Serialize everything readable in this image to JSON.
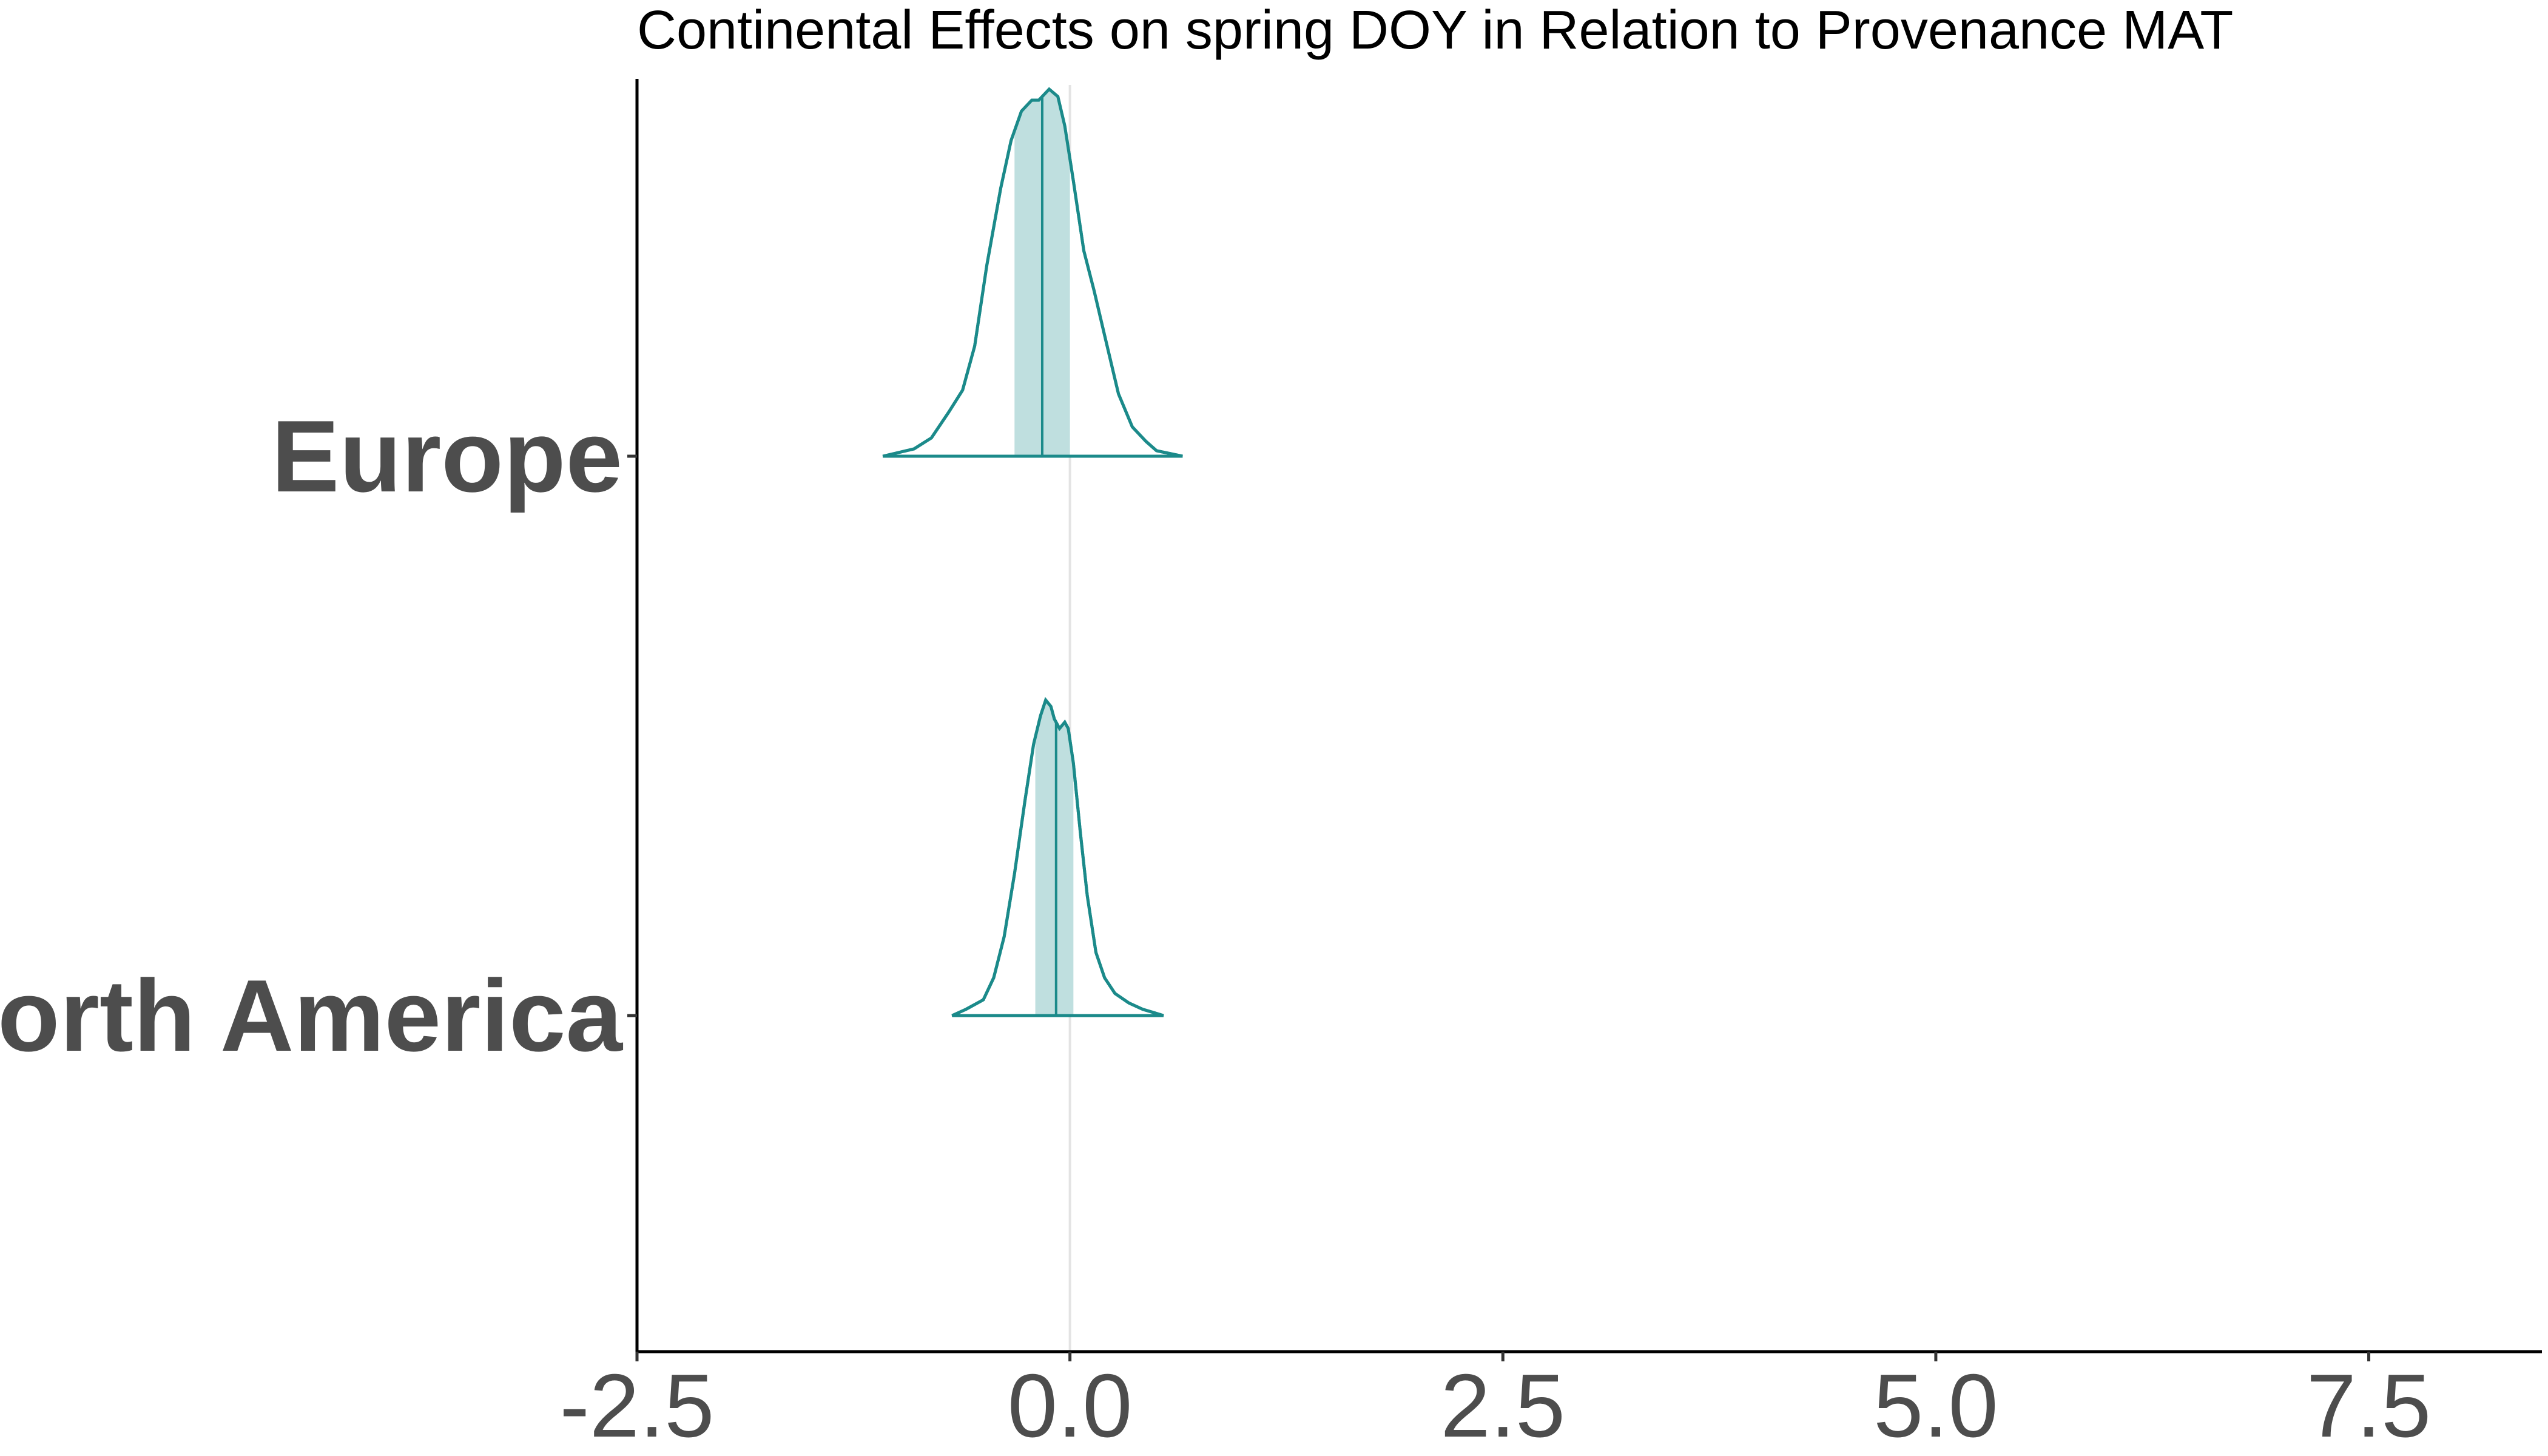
{
  "chart_data": {
    "type": "ridgeline",
    "title": "Continental Effects on spring DOY in Relation to Provenance MAT",
    "xlabel": "",
    "ylabel": "",
    "xlim": [
      -2.5,
      8.5
    ],
    "xticks": [
      -2.5,
      0.0,
      2.5,
      5.0,
      7.5
    ],
    "xtick_labels": [
      "-2.5",
      "0.0",
      "2.5",
      "5.0",
      "7.5"
    ],
    "reference_line_x": 0,
    "grid": false,
    "colors": {
      "line": "#1b8a8a",
      "band": "#a9d4d4",
      "reference": "#e3e3e3"
    },
    "series": [
      {
        "name": "Europe",
        "range": [
          -1.08,
          0.65
        ],
        "median": -0.16,
        "interval": [
          -0.32,
          0.0
        ],
        "density": [
          [
            -1.08,
            0.0
          ],
          [
            -0.9,
            0.02
          ],
          [
            -0.8,
            0.05
          ],
          [
            -0.7,
            0.12
          ],
          [
            -0.62,
            0.18
          ],
          [
            -0.55,
            0.3
          ],
          [
            -0.48,
            0.52
          ],
          [
            -0.4,
            0.73
          ],
          [
            -0.34,
            0.86
          ],
          [
            -0.28,
            0.94
          ],
          [
            -0.22,
            0.97
          ],
          [
            -0.18,
            0.97
          ],
          [
            -0.12,
            1.0
          ],
          [
            -0.07,
            0.98
          ],
          [
            -0.03,
            0.9
          ],
          [
            0.02,
            0.75
          ],
          [
            0.08,
            0.56
          ],
          [
            0.14,
            0.45
          ],
          [
            0.2,
            0.33
          ],
          [
            0.28,
            0.17
          ],
          [
            0.36,
            0.08
          ],
          [
            0.44,
            0.04
          ],
          [
            0.5,
            0.015
          ],
          [
            0.65,
            0.0
          ]
        ]
      },
      {
        "name": "North America",
        "range": [
          -0.68,
          0.54
        ],
        "median": -0.08,
        "interval": [
          -0.2,
          0.02
        ],
        "density": [
          [
            -0.68,
            0.0
          ],
          [
            -0.6,
            0.02
          ],
          [
            -0.5,
            0.05
          ],
          [
            -0.44,
            0.12
          ],
          [
            -0.38,
            0.25
          ],
          [
            -0.32,
            0.45
          ],
          [
            -0.26,
            0.68
          ],
          [
            -0.21,
            0.86
          ],
          [
            -0.17,
            0.95
          ],
          [
            -0.14,
            1.0
          ],
          [
            -0.11,
            0.98
          ],
          [
            -0.09,
            0.94
          ],
          [
            -0.06,
            0.91
          ],
          [
            -0.03,
            0.93
          ],
          [
            -0.01,
            0.91
          ],
          [
            0.02,
            0.8
          ],
          [
            0.06,
            0.58
          ],
          [
            0.1,
            0.38
          ],
          [
            0.15,
            0.2
          ],
          [
            0.2,
            0.12
          ],
          [
            0.26,
            0.07
          ],
          [
            0.34,
            0.04
          ],
          [
            0.42,
            0.02
          ],
          [
            0.54,
            0.0
          ]
        ]
      }
    ]
  }
}
